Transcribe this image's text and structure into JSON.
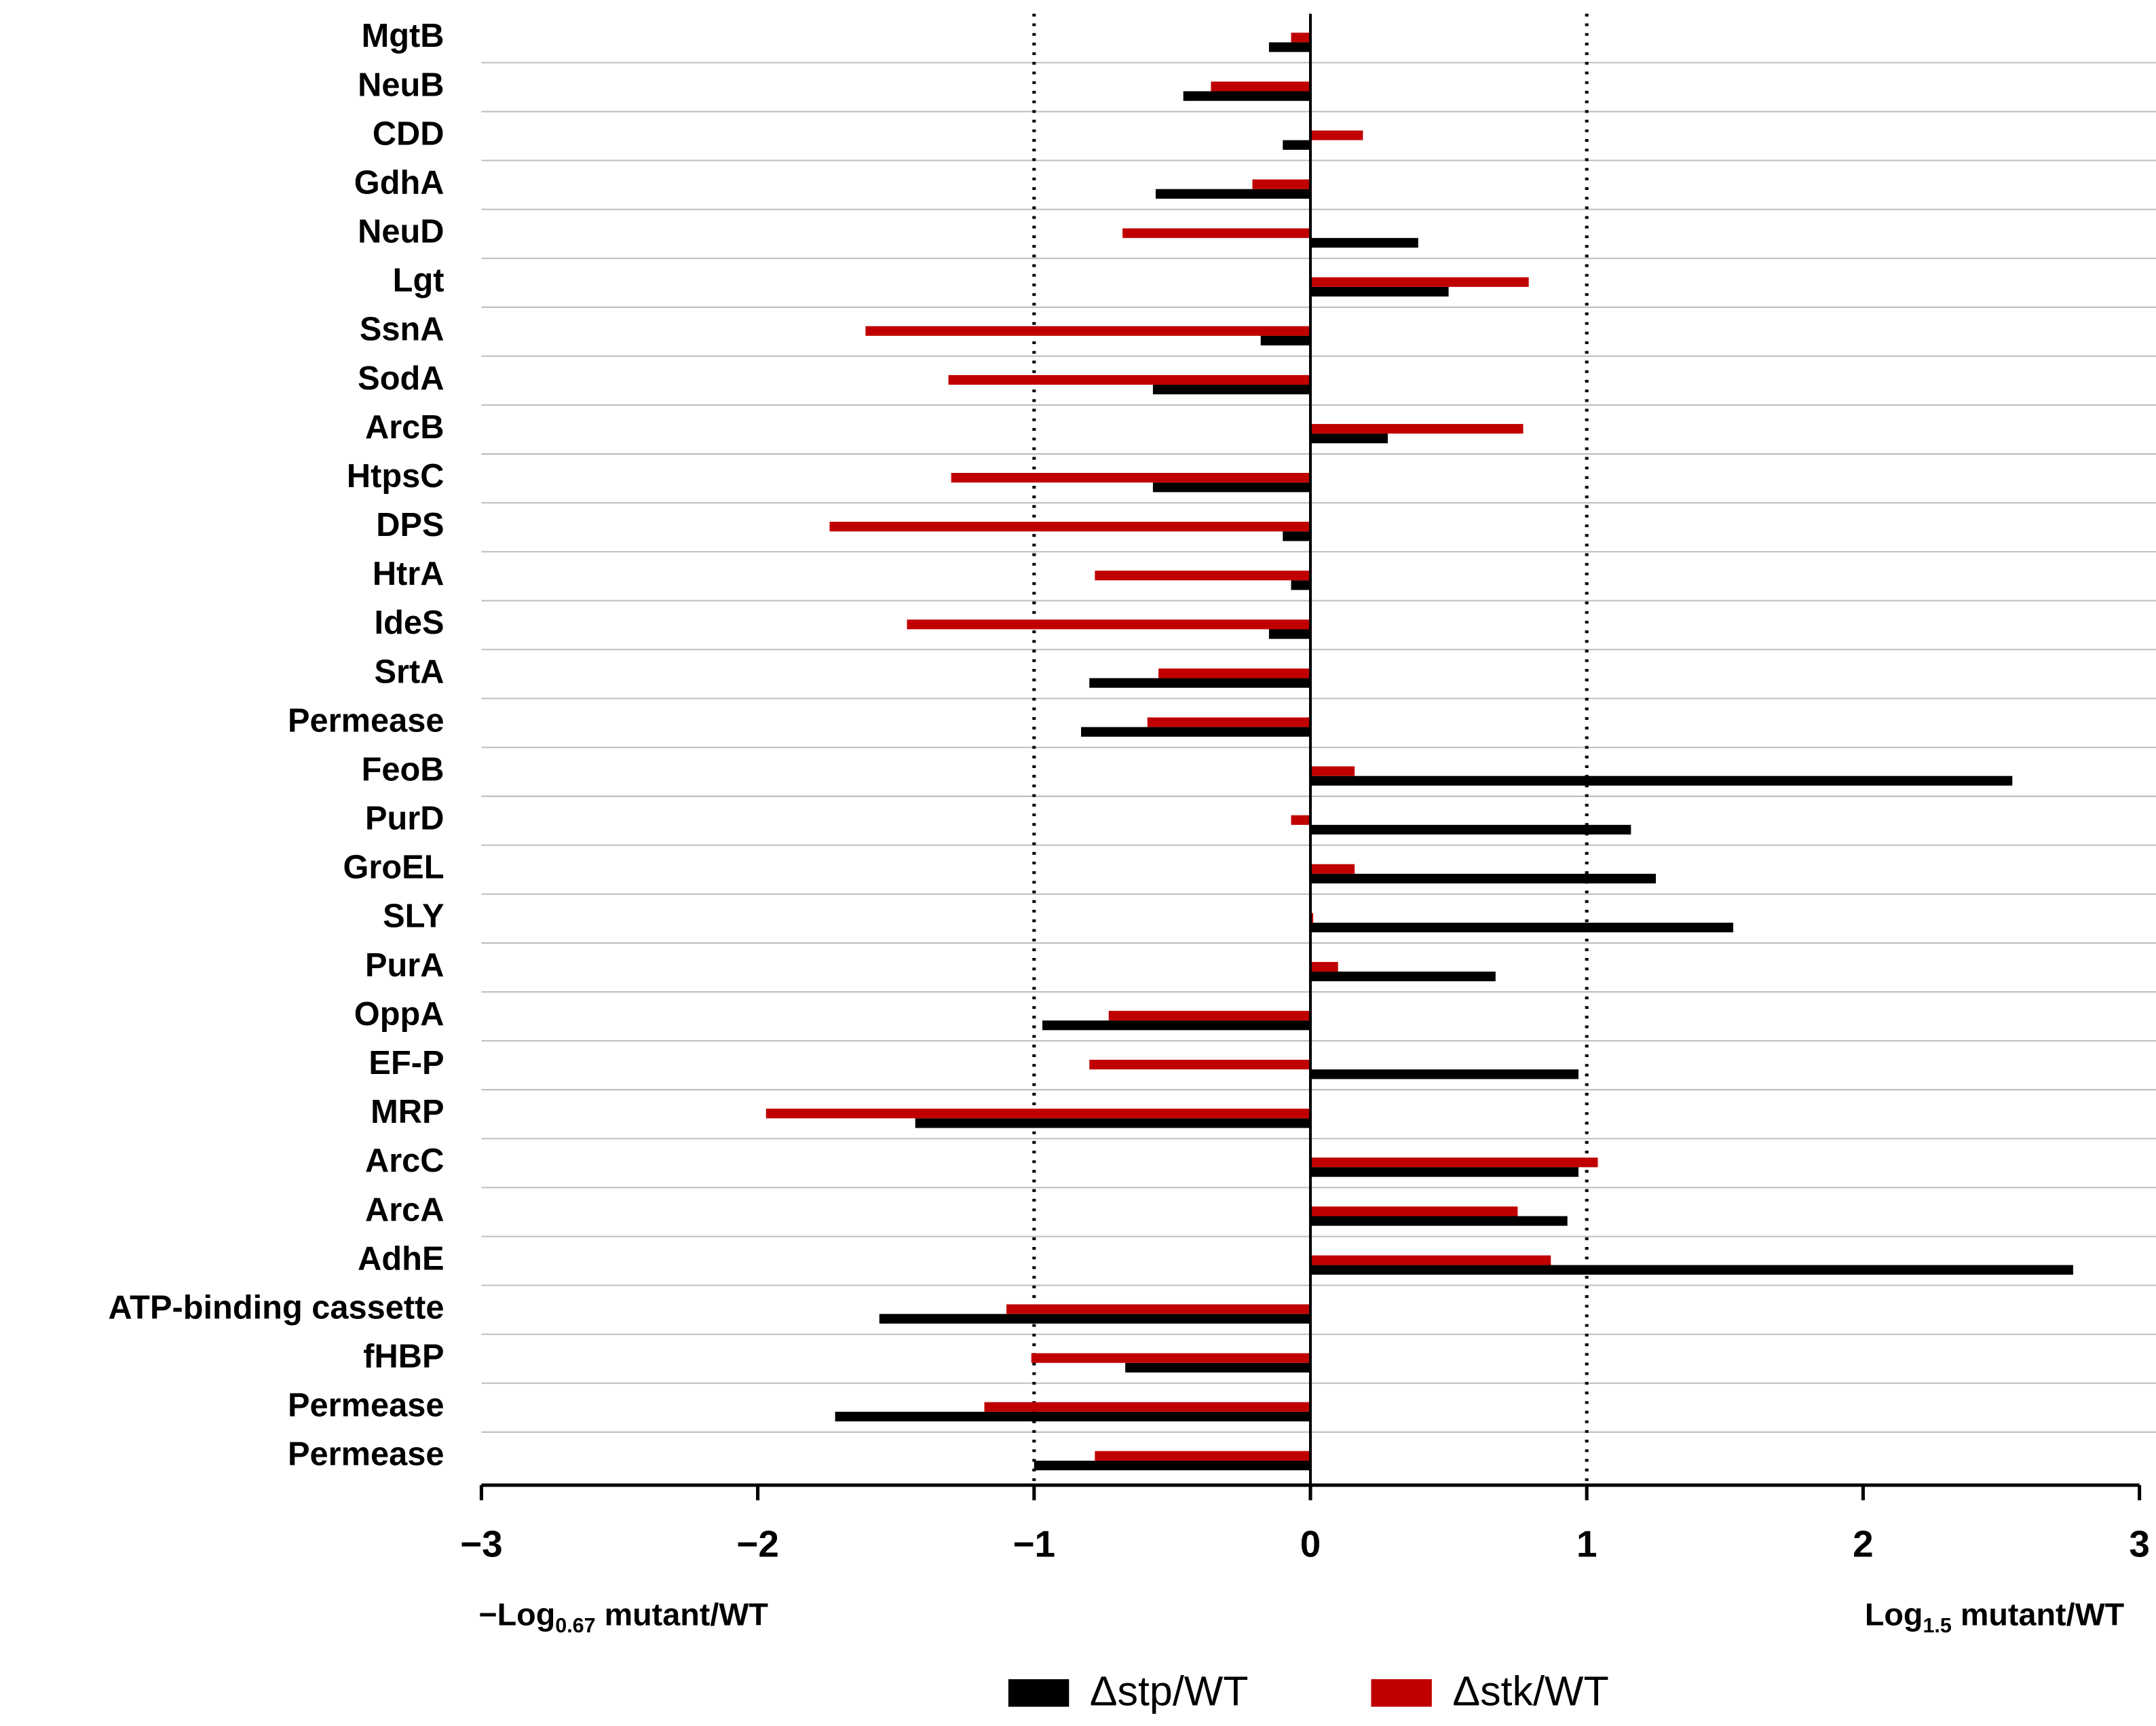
{
  "chart_data": {
    "type": "hbar",
    "categories": [
      "MgtB",
      "NeuB",
      "CDD",
      "GdhA",
      "NeuD",
      "Lgt",
      "SsnA",
      "SodA",
      "ArcB",
      "HtpsC",
      "DPS",
      "HtrA",
      "IdeS",
      "SrtA",
      "Permease",
      "FeoB",
      "PurD",
      "GroEL",
      "SLY",
      "PurA",
      "OppA",
      "EF-P",
      "MRP",
      "ArcC",
      "ArcA",
      "AdhE",
      "ATP-binding cassette",
      "fHBP",
      "Permease",
      "Permease"
    ],
    "series": [
      {
        "name": "Δstp/WT",
        "color": "#000000",
        "values": [
          -0.15,
          -0.46,
          -0.1,
          -0.56,
          0.39,
          0.5,
          -0.18,
          -0.57,
          0.28,
          -0.57,
          -0.1,
          -0.07,
          -0.15,
          -0.8,
          -0.83,
          2.54,
          1.16,
          1.25,
          1.53,
          0.67,
          -0.97,
          0.97,
          -1.43,
          0.97,
          0.93,
          2.76,
          -1.56,
          -0.67,
          -1.72,
          -1.0
        ]
      },
      {
        "name": "Δstk/WT",
        "color": "#c00000",
        "values": [
          -0.07,
          -0.36,
          0.19,
          -0.21,
          -0.68,
          0.79,
          -1.61,
          -1.31,
          0.77,
          -1.3,
          -1.74,
          -0.78,
          -1.46,
          -0.55,
          -0.59,
          0.16,
          -0.07,
          0.16,
          0.01,
          0.1,
          -0.73,
          -0.8,
          -1.97,
          1.04,
          0.75,
          0.87,
          -1.1,
          -1.01,
          -1.18,
          -0.78
        ]
      }
    ],
    "xlim": [
      -3,
      3
    ],
    "xticks": [
      {
        "value": -3,
        "label": "−3"
      },
      {
        "value": -2,
        "label": "−2"
      },
      {
        "value": -1,
        "label": "−1"
      },
      0,
      1,
      2,
      3
    ],
    "reference_lines": [
      -1,
      1
    ],
    "x_label_left": [
      "−Log",
      "0.67",
      " mutant/WT"
    ],
    "x_label_right": [
      "Log",
      "1.5",
      " mutant/WT"
    ],
    "legend": "bottom"
  }
}
